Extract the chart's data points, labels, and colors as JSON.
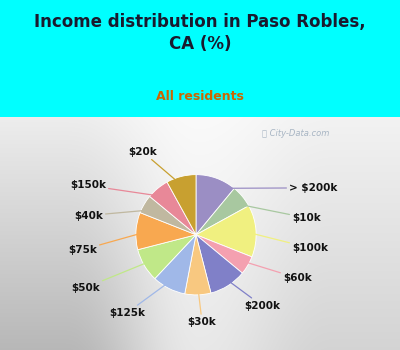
{
  "title": "Income distribution in Paso Robles,\nCA (%)",
  "subtitle": "All residents",
  "title_color": "#1a1a2e",
  "subtitle_color": "#cc6600",
  "watermark": "ⓘ City-Data.com",
  "slices": [
    {
      "label": "> $200k",
      "value": 11,
      "color": "#9b8ec4"
    },
    {
      "label": "$10k",
      "value": 6,
      "color": "#a8c8a0"
    },
    {
      "label": "$100k",
      "value": 14,
      "color": "#f0f080"
    },
    {
      "label": "$60k",
      "value": 5,
      "color": "#f4a0b0"
    },
    {
      "label": "$200k",
      "value": 10,
      "color": "#8080c8"
    },
    {
      "label": "$30k",
      "value": 7,
      "color": "#f8c880"
    },
    {
      "label": "$125k",
      "value": 9,
      "color": "#a0b8e8"
    },
    {
      "label": "$50k",
      "value": 9,
      "color": "#c0e888"
    },
    {
      "label": "$75k",
      "value": 10,
      "color": "#f8a850"
    },
    {
      "label": "$40k",
      "value": 5,
      "color": "#c0b8a0"
    },
    {
      "label": "$150k",
      "value": 6,
      "color": "#e88898"
    },
    {
      "label": "$20k",
      "value": 8,
      "color": "#c8a030"
    }
  ],
  "title_fontsize": 12,
  "subtitle_fontsize": 9,
  "label_fontsize": 7.5,
  "cyan_bg": "#00FFFF",
  "chart_bg_top": "#e8f5f0",
  "chart_bg_bottom": "#c0e8d8"
}
